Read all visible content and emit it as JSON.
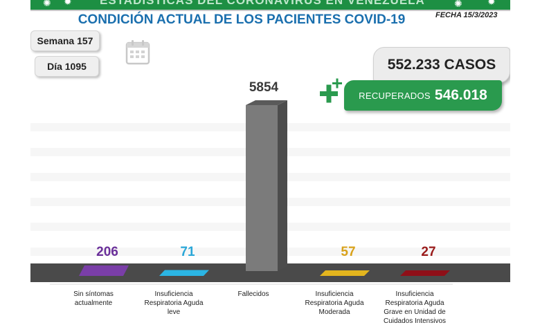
{
  "banner": {
    "title": "ESTADÍSTICAS DEL CORONAVIRUS EN VENEZUELA"
  },
  "header": {
    "title": "CONDICIÓN ACTUAL DE LOS PACIENTES COVID-19",
    "date": "FECHA 15/3/2023"
  },
  "week": {
    "label": "Semana 157"
  },
  "day": {
    "label": "Día 1095"
  },
  "cases": {
    "label": "552.233 CASOS"
  },
  "recovered": {
    "label": "RECUPERADOS",
    "value": "546.018"
  },
  "icons": {
    "calendar": "calendar-icon",
    "plus": "plus-icon"
  },
  "colors": {
    "title_blue": "#1a6fae",
    "recovered_green": "#2a9a4e",
    "floor": "#4a4a4a"
  },
  "chart_data": {
    "type": "bar",
    "categories": [
      [
        "Sin síntomas",
        "actualmente"
      ],
      [
        "Insuficiencia",
        "Respiratoria Aguda",
        "leve"
      ],
      [
        "Fallecidos"
      ],
      [
        "Insuficiencia",
        "Respiratoria Aguda",
        "Moderada"
      ],
      [
        "Insuficiencia",
        "Respiratoria Aguda",
        "Grave en Unidad de",
        "Cuidados Intensivos"
      ]
    ],
    "values": [
      206,
      71,
      5854,
      57,
      27
    ],
    "value_labels": [
      "206",
      "71",
      "5854",
      "57",
      "27"
    ],
    "colors": [
      "#7a3ea8",
      "#2bb5e4",
      "#7b7b7b",
      "#e3b51e",
      "#8f0f18"
    ],
    "label_colors": [
      "#6a2f9a",
      "#2aa7d8",
      "#3a3a3a",
      "#d9a21a",
      "#9a1b1b"
    ],
    "title": "CONDICIÓN ACTUAL DE LOS PACIENTES COVID-19",
    "xlabel": "",
    "ylabel": "",
    "ylim": [
      0,
      5854
    ],
    "grid": true,
    "legend": "none"
  }
}
